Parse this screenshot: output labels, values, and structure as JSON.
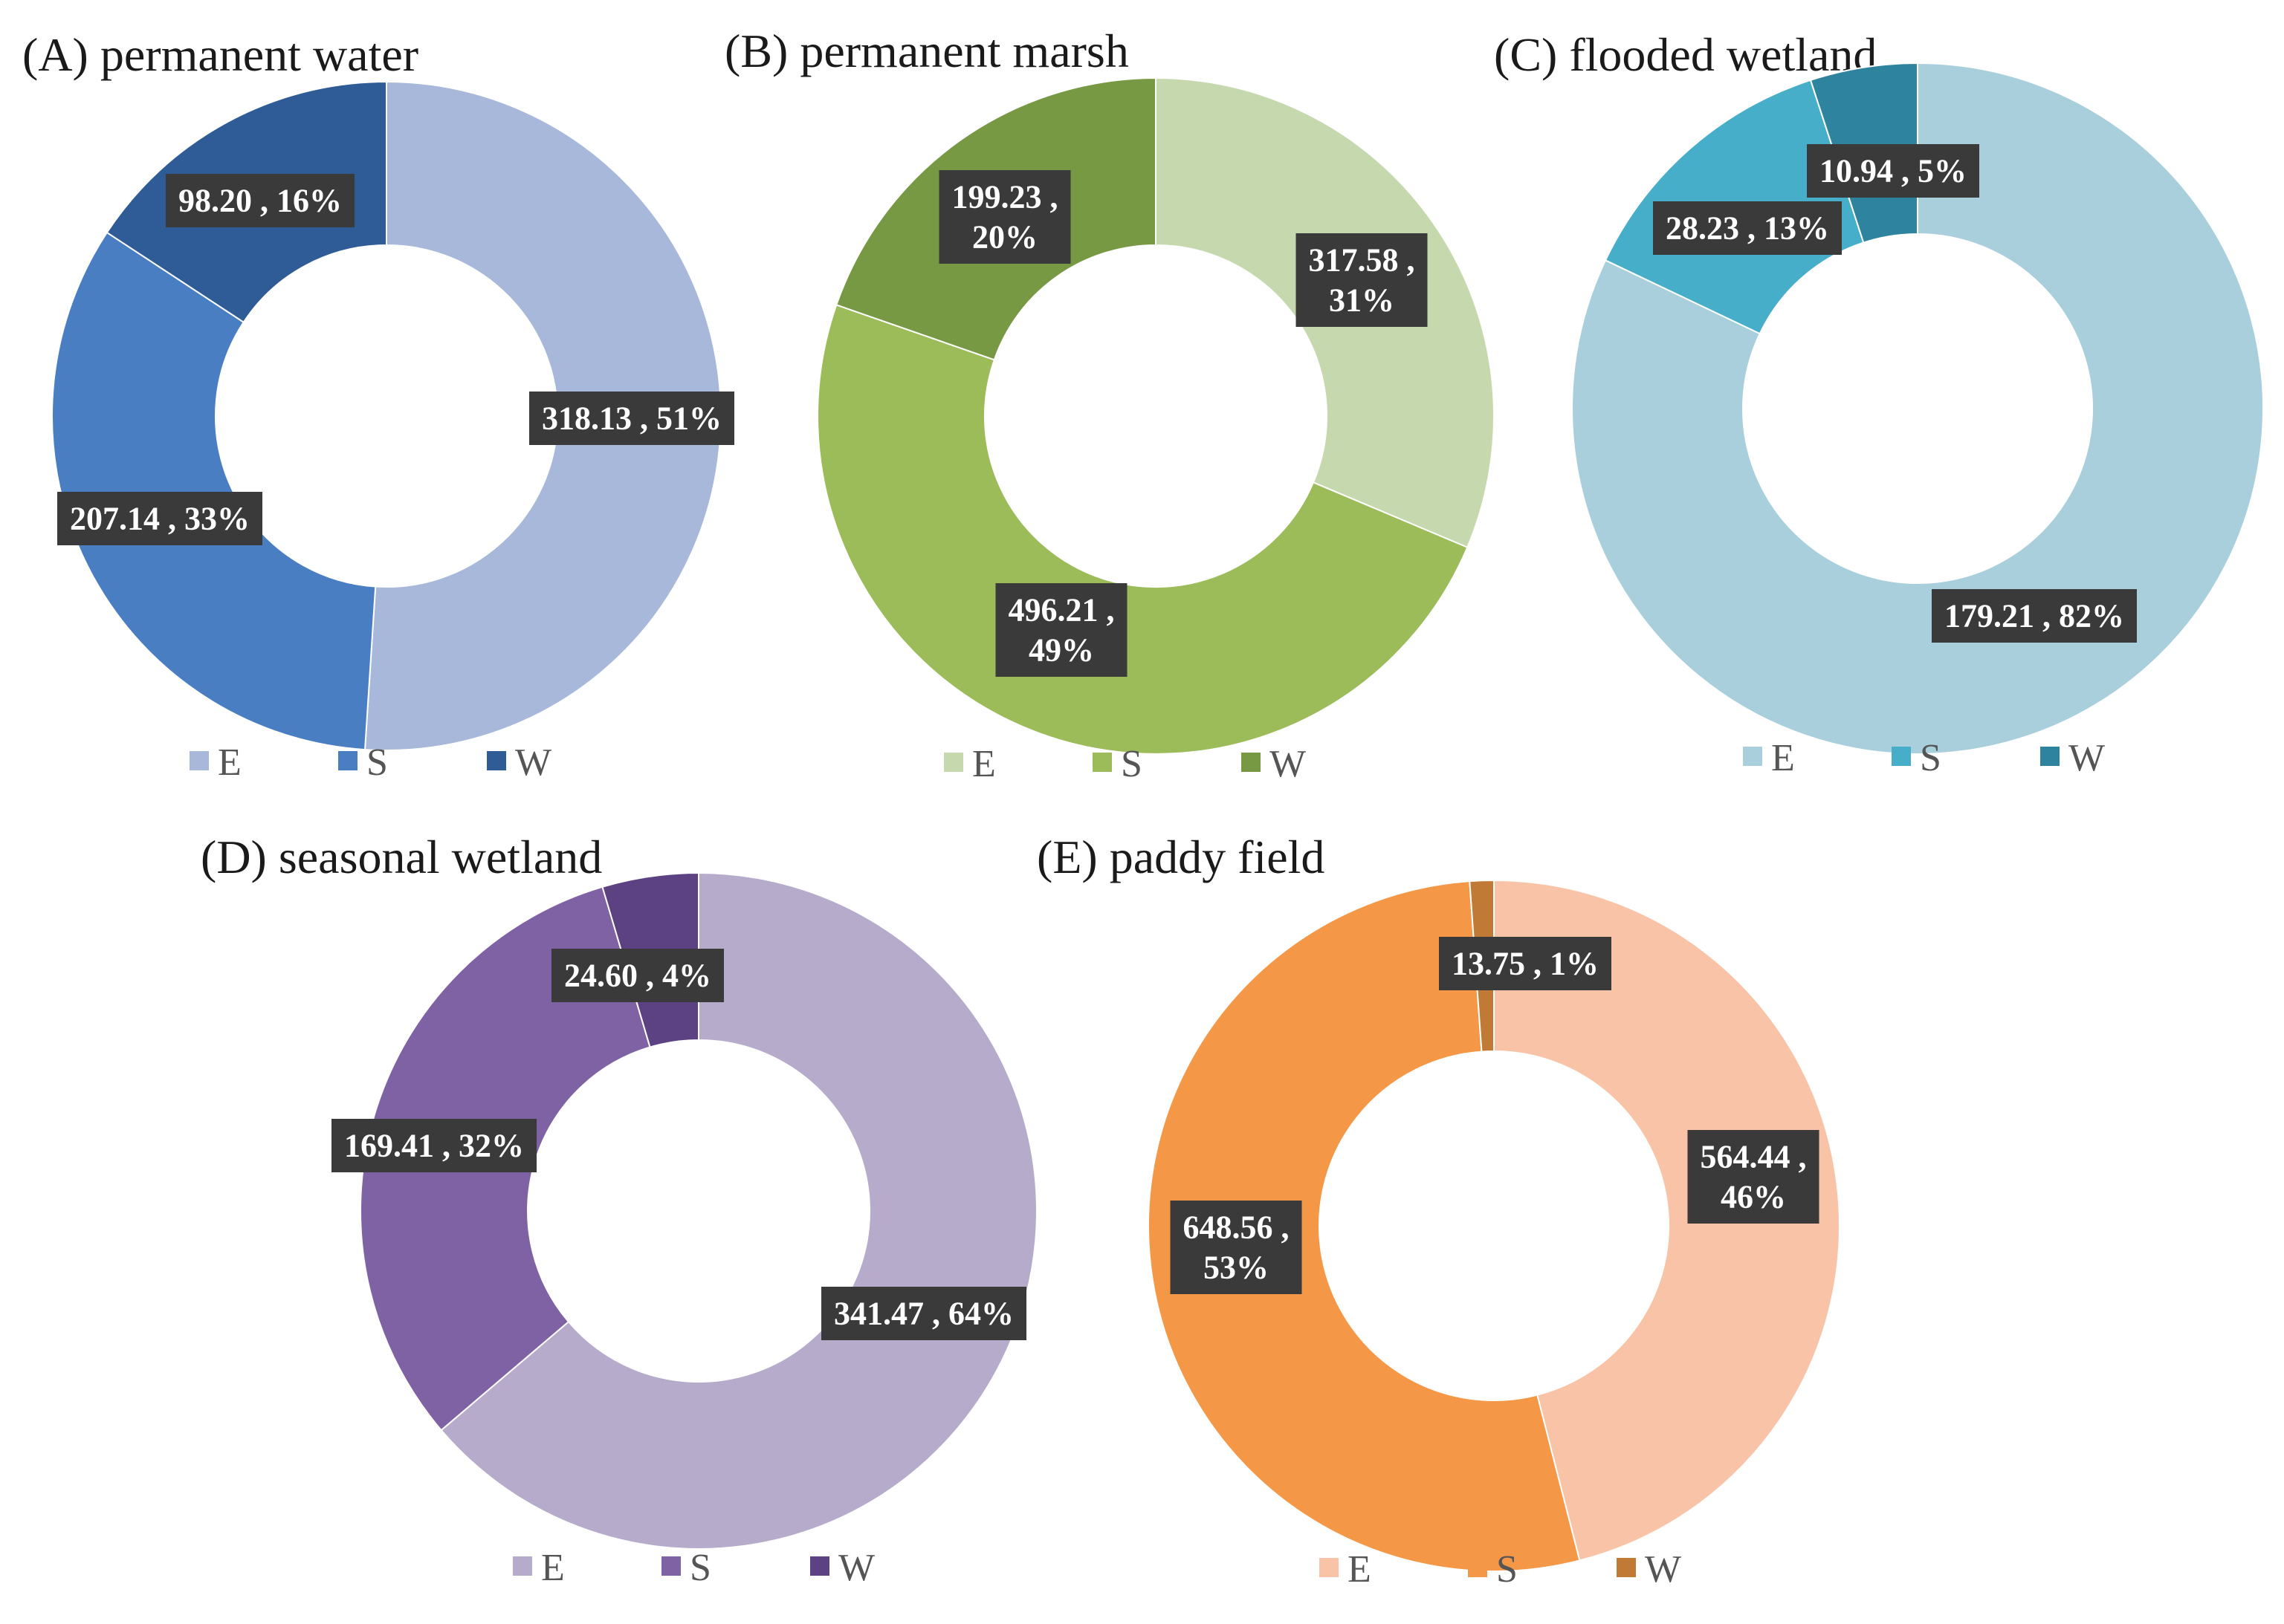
{
  "chart_data": [
    {
      "type": "pie",
      "variant": "donut",
      "title": "(A) permanent water",
      "categories": [
        "E",
        "S",
        "W"
      ],
      "values": [
        318.13,
        207.14,
        98.2
      ],
      "percents": [
        51,
        33,
        16
      ],
      "labels": [
        [
          "318.13 , 51%"
        ],
        [
          "207.14 , 33%"
        ],
        [
          "98.20 , 16%"
        ]
      ],
      "colors": [
        "#A7B8DA",
        "#4A7EC2",
        "#2F5C97"
      ]
    },
    {
      "type": "pie",
      "variant": "donut",
      "title": "(B) permanent marsh",
      "categories": [
        "E",
        "S",
        "W"
      ],
      "values": [
        317.58,
        496.21,
        199.23
      ],
      "percents": [
        31,
        49,
        20
      ],
      "labels": [
        [
          "317.58 ,",
          "31%"
        ],
        [
          "496.21 ,",
          "49%"
        ],
        [
          "199.23 ,",
          "20%"
        ]
      ],
      "colors": [
        "#C6D8AD",
        "#9CBB59",
        "#789943"
      ]
    },
    {
      "type": "pie",
      "variant": "donut",
      "title": "(C) flooded wetland",
      "categories": [
        "E",
        "S",
        "W"
      ],
      "values": [
        179.21,
        28.23,
        10.94
      ],
      "percents": [
        82,
        13,
        5
      ],
      "labels": [
        [
          "179.21 , 82%"
        ],
        [
          "28.23 , 13%"
        ],
        [
          "10.94 , 5%"
        ]
      ],
      "colors": [
        "#A9CFDD",
        "#47AECA",
        "#2E849E"
      ]
    },
    {
      "type": "pie",
      "variant": "donut",
      "title": "(D) seasonal wetland",
      "categories": [
        "E",
        "S",
        "W"
      ],
      "values": [
        341.47,
        169.41,
        24.6
      ],
      "percents": [
        64,
        32,
        4
      ],
      "labels": [
        [
          "341.47 , 64%"
        ],
        [
          "169.41 , 32%"
        ],
        [
          "24.60 , 4%"
        ]
      ],
      "colors": [
        "#B6ABCA",
        "#7F62A3",
        "#5C4282"
      ]
    },
    {
      "type": "pie",
      "variant": "donut",
      "title": "(E) paddy field",
      "categories": [
        "E",
        "S",
        "W"
      ],
      "values": [
        564.44,
        648.56,
        13.75
      ],
      "percents": [
        46,
        53,
        1
      ],
      "labels": [
        [
          "564.44 ,",
          "46%"
        ],
        [
          "648.56 ,",
          "53%"
        ],
        [
          "13.75 , 1%"
        ]
      ],
      "colors": [
        "#F8C3A6",
        "#F49847",
        "#C17A35"
      ]
    }
  ]
}
